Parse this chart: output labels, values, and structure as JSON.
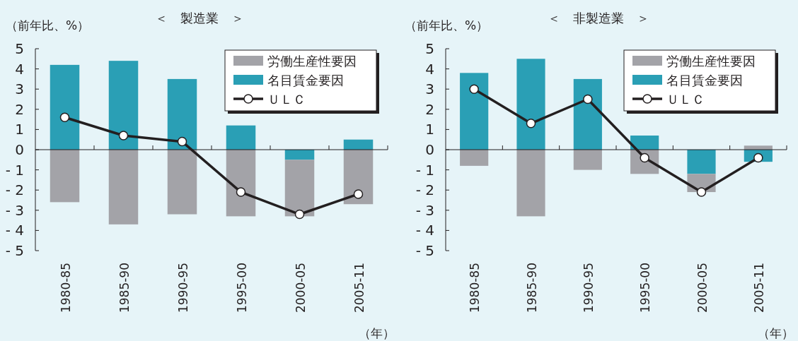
{
  "chart_data": [
    {
      "type": "bar",
      "title": "＜　製造業　＞",
      "ylabel": "（前年比、%）",
      "xlabel": "（年）",
      "stacked": true,
      "legend": "top right",
      "categories": [
        "1980-85",
        "1985-90",
        "1990-95",
        "1995-00",
        "2000-05",
        "2005-11"
      ],
      "ylim": [
        -5,
        5
      ],
      "yticks": [
        {
          "value": -5,
          "label": "- 5"
        },
        {
          "value": -4,
          "label": "- 4"
        },
        {
          "value": -3,
          "label": "- 3"
        },
        {
          "value": -2,
          "label": "- 2"
        },
        {
          "value": -1,
          "label": "- 1"
        },
        0,
        1,
        2,
        3,
        4,
        5
      ],
      "series": [
        {
          "name": "名目賃金要因",
          "color": "#2a9fb5",
          "values": [
            4.2,
            4.4,
            3.5,
            1.2,
            -0.5,
            0.5
          ]
        },
        {
          "name": "労働生産性要因",
          "color": "#a3a3a8",
          "values": [
            -2.6,
            -3.7,
            -3.2,
            -3.3,
            -2.8,
            -2.7
          ]
        },
        {
          "name": "ＵＬＣ",
          "type": "line",
          "marker": "circle",
          "color": "#231f20",
          "values": [
            1.6,
            0.7,
            0.4,
            -2.1,
            -3.2,
            -2.2
          ]
        }
      ]
    },
    {
      "type": "bar",
      "title": "＜　非製造業　＞",
      "ylabel": "（前年比、%）",
      "xlabel": "（年）",
      "stacked": true,
      "legend": "top right",
      "categories": [
        "1980-85",
        "1985-90",
        "1990-95",
        "1995-00",
        "2000-05",
        "2005-11"
      ],
      "ylim": [
        -5,
        5
      ],
      "yticks": [
        {
          "value": -5,
          "label": "- 5"
        },
        {
          "value": -4,
          "label": "- 4"
        },
        {
          "value": -3,
          "label": "- 3"
        },
        {
          "value": -2,
          "label": "- 2"
        },
        {
          "value": -1,
          "label": "- 1"
        },
        0,
        1,
        2,
        3,
        4,
        5
      ],
      "series": [
        {
          "name": "名目賃金要因",
          "color": "#2a9fb5",
          "values": [
            3.8,
            4.5,
            3.5,
            0.7,
            -1.2,
            -0.6
          ]
        },
        {
          "name": "労働生産性要因",
          "color": "#a3a3a8",
          "values": [
            -0.8,
            -3.3,
            -1.0,
            -1.2,
            -0.9,
            0.2
          ]
        },
        {
          "name": "ＵＬＣ",
          "type": "line",
          "marker": "circle",
          "color": "#231f20",
          "values": [
            3.0,
            1.3,
            2.5,
            -0.4,
            -2.1,
            -0.4
          ]
        }
      ]
    }
  ]
}
